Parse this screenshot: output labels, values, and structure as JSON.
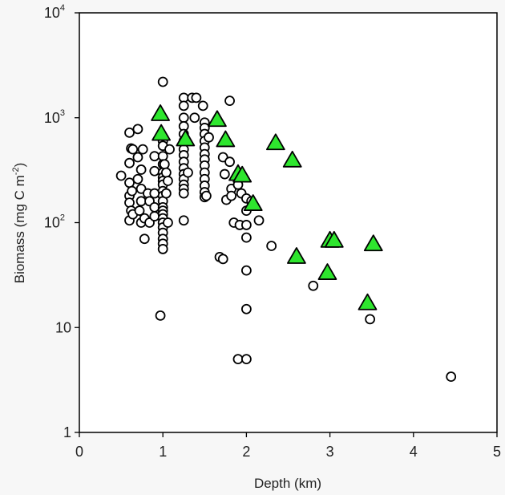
{
  "chart_data": {
    "type": "scatter",
    "xlabel": "Depth (km)",
    "ylabel": {
      "base": "Biomass (mg C m",
      "sup": "-2",
      "close": ")"
    },
    "xlim": [
      0,
      5
    ],
    "ylim": [
      1,
      10000
    ],
    "yscale": "log",
    "grid": false,
    "x_ticks": [
      "0",
      "1",
      "2",
      "3",
      "4",
      "5"
    ],
    "y_ticks": [
      {
        "value": 1,
        "base": "1",
        "sup": ""
      },
      {
        "value": 10,
        "base": "10",
        "sup": ""
      },
      {
        "value": 100,
        "base": "10",
        "sup": "2"
      },
      {
        "value": 1000,
        "base": "10",
        "sup": "3"
      },
      {
        "value": 10000,
        "base": "10",
        "sup": "4"
      }
    ],
    "series": [
      {
        "marker": "circle",
        "color": "#ffffff",
        "stroke": "#000000",
        "points": [
          [
            0.5,
            280
          ],
          [
            0.6,
            720
          ],
          [
            0.62,
            510
          ],
          [
            0.6,
            370
          ],
          [
            0.6,
            240
          ],
          [
            0.6,
            180
          ],
          [
            0.6,
            155
          ],
          [
            0.6,
            105
          ],
          [
            0.62,
            130
          ],
          [
            0.64,
            500
          ],
          [
            0.63,
            200
          ],
          [
            0.64,
            120
          ],
          [
            0.7,
            780
          ],
          [
            0.7,
            420
          ],
          [
            0.7,
            260
          ],
          [
            0.72,
            130
          ],
          [
            0.74,
            320
          ],
          [
            0.74,
            210
          ],
          [
            0.74,
            160
          ],
          [
            0.74,
            100
          ],
          [
            0.76,
            500
          ],
          [
            0.78,
            110
          ],
          [
            0.78,
            70
          ],
          [
            0.82,
            190
          ],
          [
            0.84,
            160
          ],
          [
            0.84,
            100
          ],
          [
            0.9,
            430
          ],
          [
            0.9,
            310
          ],
          [
            0.9,
            190
          ],
          [
            0.9,
            140
          ],
          [
            0.9,
            115
          ],
          [
            0.97,
            13
          ],
          [
            1.0,
            2200
          ],
          [
            1.0,
            600
          ],
          [
            1.0,
            540
          ],
          [
            1.0,
            430
          ],
          [
            1.0,
            360
          ],
          [
            1.0,
            300
          ],
          [
            1.0,
            270
          ],
          [
            1.0,
            250
          ],
          [
            1.0,
            230
          ],
          [
            1.0,
            200
          ],
          [
            1.0,
            180
          ],
          [
            1.0,
            160
          ],
          [
            1.0,
            140
          ],
          [
            1.0,
            130
          ],
          [
            1.0,
            120
          ],
          [
            1.0,
            110
          ],
          [
            1.0,
            100
          ],
          [
            1.0,
            90
          ],
          [
            1.0,
            80
          ],
          [
            1.0,
            70
          ],
          [
            1.0,
            63
          ],
          [
            1.0,
            56
          ],
          [
            1.02,
            360
          ],
          [
            1.04,
            300
          ],
          [
            1.04,
            190
          ],
          [
            1.06,
            250
          ],
          [
            1.06,
            100
          ],
          [
            1.08,
            500
          ],
          [
            1.25,
            1550
          ],
          [
            1.25,
            1300
          ],
          [
            1.25,
            1000
          ],
          [
            1.25,
            830
          ],
          [
            1.25,
            700
          ],
          [
            1.25,
            600
          ],
          [
            1.25,
            500
          ],
          [
            1.25,
            440
          ],
          [
            1.25,
            380
          ],
          [
            1.25,
            330
          ],
          [
            1.25,
            290
          ],
          [
            1.25,
            260
          ],
          [
            1.25,
            230
          ],
          [
            1.25,
            210
          ],
          [
            1.25,
            190
          ],
          [
            1.25,
            105
          ],
          [
            1.3,
            300
          ],
          [
            1.35,
            1550
          ],
          [
            1.38,
            1000
          ],
          [
            1.4,
            1550
          ],
          [
            1.48,
            1300
          ],
          [
            1.5,
            900
          ],
          [
            1.5,
            800
          ],
          [
            1.5,
            700
          ],
          [
            1.5,
            600
          ],
          [
            1.5,
            520
          ],
          [
            1.5,
            450
          ],
          [
            1.5,
            400
          ],
          [
            1.5,
            350
          ],
          [
            1.5,
            300
          ],
          [
            1.5,
            260
          ],
          [
            1.5,
            225
          ],
          [
            1.5,
            195
          ],
          [
            1.5,
            175
          ],
          [
            1.52,
            180
          ],
          [
            1.55,
            650
          ],
          [
            1.68,
            47
          ],
          [
            1.72,
            45
          ],
          [
            1.72,
            420
          ],
          [
            1.74,
            290
          ],
          [
            1.76,
            165
          ],
          [
            1.8,
            1450
          ],
          [
            1.8,
            380
          ],
          [
            1.82,
            210
          ],
          [
            1.82,
            180
          ],
          [
            1.85,
            100
          ],
          [
            1.9,
            230
          ],
          [
            1.9,
            5
          ],
          [
            1.92,
            95
          ],
          [
            1.94,
            190
          ],
          [
            2.0,
            170
          ],
          [
            2.0,
            130
          ],
          [
            2.0,
            95
          ],
          [
            2.0,
            72
          ],
          [
            2.0,
            35
          ],
          [
            2.0,
            15
          ],
          [
            2.0,
            5
          ],
          [
            2.06,
            160
          ],
          [
            2.15,
            105
          ],
          [
            2.3,
            60
          ],
          [
            2.8,
            25
          ],
          [
            3.48,
            12
          ],
          [
            4.45,
            3.4
          ]
        ]
      },
      {
        "marker": "triangle",
        "color": "#2ee62e",
        "stroke": "#000000",
        "points": [
          [
            0.97,
            1080
          ],
          [
            0.98,
            700
          ],
          [
            1.27,
            620
          ],
          [
            1.65,
            950
          ],
          [
            1.75,
            610
          ],
          [
            1.9,
            290
          ],
          [
            1.95,
            280
          ],
          [
            2.08,
            150
          ],
          [
            2.35,
            570
          ],
          [
            2.55,
            390
          ],
          [
            2.6,
            47
          ],
          [
            2.97,
            33
          ],
          [
            3.0,
            67
          ],
          [
            3.05,
            67
          ],
          [
            3.45,
            17
          ],
          [
            3.52,
            62
          ]
        ]
      }
    ]
  }
}
